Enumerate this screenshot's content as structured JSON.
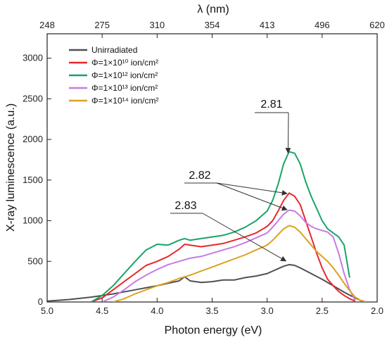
{
  "chart_data": {
    "type": "line",
    "title": "",
    "xlabel": "Photon energy (eV)",
    "ylabel": "X-ray luminescence (a.u.)",
    "xlim": [
      5.0,
      2.0
    ],
    "ylim": [
      0,
      3300
    ],
    "x_reversed": true,
    "grid": false,
    "legend_position": "top-left",
    "x_ticks": [
      "5.0",
      "4.5",
      "4.0",
      "3.5",
      "3.0",
      "2.5",
      "2.0"
    ],
    "x_tick_values": [
      5.0,
      4.5,
      4.0,
      3.5,
      3.0,
      2.5,
      2.0
    ],
    "y_ticks": [
      "0",
      "500",
      "1000",
      "1500",
      "2000",
      "2500",
      "3000"
    ],
    "y_tick_values": [
      0,
      500,
      1000,
      1500,
      2000,
      2500,
      3000
    ],
    "top_axis": {
      "label": "λ (nm)",
      "ticks": [
        "248",
        "275",
        "310",
        "354",
        "413",
        "496",
        "620"
      ],
      "tick_energies": [
        5.0,
        4.5,
        4.0,
        3.5,
        3.0,
        2.5,
        2.0
      ]
    },
    "series": [
      {
        "name": "Unirradiated",
        "color": "#505050",
        "x": [
          5.0,
          4.8,
          4.6,
          4.4,
          4.2,
          4.0,
          3.9,
          3.8,
          3.75,
          3.7,
          3.6,
          3.5,
          3.4,
          3.3,
          3.2,
          3.1,
          3.0,
          2.95,
          2.9,
          2.85,
          2.8,
          2.75,
          2.7,
          2.6,
          2.5,
          2.4,
          2.3,
          2.2,
          2.15,
          2.1
        ],
        "y": [
          10,
          30,
          60,
          100,
          150,
          200,
          230,
          260,
          310,
          260,
          240,
          250,
          270,
          270,
          300,
          320,
          350,
          380,
          410,
          440,
          460,
          450,
          420,
          350,
          280,
          200,
          120,
          50,
          20,
          0
        ]
      },
      {
        "name": "Φ=1×10¹⁰ ion/cm²",
        "color": "#e8292b",
        "x": [
          4.6,
          4.5,
          4.4,
          4.3,
          4.2,
          4.1,
          4.0,
          3.9,
          3.8,
          3.75,
          3.7,
          3.6,
          3.5,
          3.4,
          3.3,
          3.2,
          3.1,
          3.0,
          2.95,
          2.9,
          2.85,
          2.8,
          2.75,
          2.7,
          2.65,
          2.6,
          2.55,
          2.5,
          2.45,
          2.4,
          2.35,
          2.3,
          2.25,
          2.2
        ],
        "y": [
          0,
          50,
          150,
          250,
          350,
          450,
          500,
          560,
          650,
          710,
          700,
          680,
          700,
          720,
          760,
          800,
          850,
          930,
          1000,
          1120,
          1250,
          1340,
          1300,
          1200,
          1000,
          800,
          600,
          420,
          280,
          200,
          130,
          80,
          40,
          10
        ]
      },
      {
        "name": "Φ=1×10¹² ion/cm²",
        "color": "#18a567",
        "x": [
          4.6,
          4.5,
          4.4,
          4.3,
          4.2,
          4.1,
          4.0,
          3.9,
          3.8,
          3.75,
          3.7,
          3.6,
          3.5,
          3.4,
          3.3,
          3.2,
          3.1,
          3.0,
          2.95,
          2.9,
          2.85,
          2.8,
          2.75,
          2.7,
          2.65,
          2.6,
          2.55,
          2.5,
          2.45,
          2.4,
          2.35,
          2.3,
          2.25
        ],
        "y": [
          0,
          80,
          200,
          350,
          500,
          640,
          710,
          700,
          760,
          780,
          760,
          780,
          800,
          820,
          860,
          920,
          1000,
          1120,
          1250,
          1450,
          1700,
          1850,
          1830,
          1700,
          1480,
          1300,
          1150,
          1000,
          900,
          850,
          800,
          700,
          300
        ]
      },
      {
        "name": "Φ=1×10¹³ ion/cm²",
        "color": "#c77ae6",
        "x": [
          4.5,
          4.4,
          4.3,
          4.2,
          4.1,
          4.0,
          3.9,
          3.8,
          3.7,
          3.6,
          3.5,
          3.4,
          3.3,
          3.2,
          3.1,
          3.0,
          2.95,
          2.9,
          2.85,
          2.8,
          2.75,
          2.7,
          2.65,
          2.6,
          2.55,
          2.5,
          2.45,
          2.4,
          2.35,
          2.3,
          2.25,
          2.2
        ],
        "y": [
          0,
          60,
          150,
          250,
          330,
          400,
          460,
          500,
          540,
          560,
          600,
          640,
          680,
          730,
          790,
          850,
          920,
          1000,
          1080,
          1130,
          1120,
          1060,
          980,
          930,
          900,
          880,
          860,
          800,
          600,
          350,
          150,
          20
        ]
      },
      {
        "name": "Φ=1×10¹⁴ ion/cm²",
        "color": "#dba21f",
        "x": [
          4.4,
          4.3,
          4.2,
          4.1,
          4.0,
          3.9,
          3.8,
          3.7,
          3.6,
          3.5,
          3.4,
          3.3,
          3.2,
          3.1,
          3.0,
          2.95,
          2.9,
          2.85,
          2.8,
          2.75,
          2.7,
          2.65,
          2.6,
          2.55,
          2.5,
          2.45,
          2.4,
          2.35,
          2.3,
          2.25,
          2.2,
          2.15,
          2.1
        ],
        "y": [
          0,
          40,
          100,
          150,
          200,
          240,
          290,
          330,
          380,
          430,
          480,
          530,
          580,
          640,
          700,
          760,
          830,
          900,
          940,
          920,
          860,
          780,
          700,
          620,
          560,
          500,
          420,
          330,
          230,
          140,
          60,
          20,
          0
        ]
      }
    ],
    "annotations": [
      {
        "text": "2.81",
        "arrow_x": [
          2.81
        ],
        "arrow_y": [
          1800
        ]
      },
      {
        "text": "2.82",
        "arrow_x": [
          2.82,
          2.82
        ],
        "arrow_y": [
          1300,
          1100
        ]
      },
      {
        "text": "2.83",
        "arrow_x": [
          2.83
        ],
        "arrow_y": [
          470
        ]
      }
    ]
  }
}
